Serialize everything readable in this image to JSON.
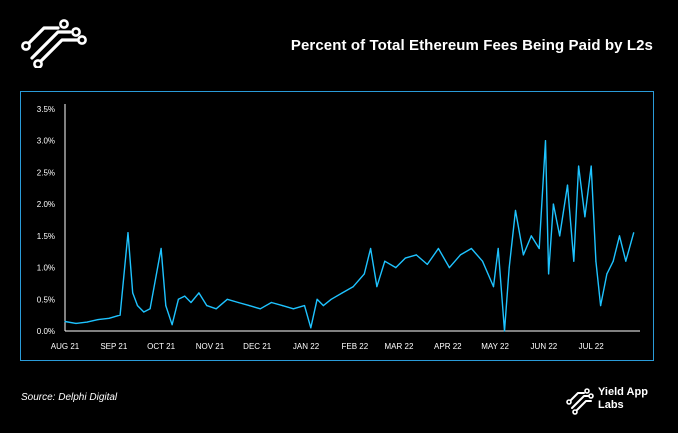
{
  "header": {
    "title": "Percent of Total Ethereum Fees Being Paid by L2s"
  },
  "footer": {
    "source": "Source: Delphi Digital",
    "brand_line1": "Yield App",
    "brand_line2": "Labs"
  },
  "colors": {
    "background": "#000000",
    "frame": "#2a9bd8",
    "series": "#1ec3ff",
    "text": "#ffffff"
  },
  "icons": {
    "top_logo": "circuit-trace-logo-icon",
    "brand_logo": "circuit-trace-logo-icon"
  },
  "chart_data": {
    "type": "line",
    "title": "Percent of Total Ethereum Fees Being Paid by L2s",
    "xlabel": "",
    "ylabel": "",
    "ylim": [
      0,
      3.5
    ],
    "grid": false,
    "legend": "none",
    "y_ticks": [
      "0.0%",
      "0.5%",
      "1.0%",
      "1.5%",
      "2.0%",
      "2.5%",
      "3.0%",
      "3.5%"
    ],
    "x_ticks": [
      "AUG 21",
      "SEP 21",
      "OCT 21",
      "NOV 21",
      "DEC 21",
      "JAN 22",
      "FEB 22",
      "MAR 22",
      "APR 22",
      "MAY 22",
      "JUN 22",
      "JUL 22"
    ],
    "series": [
      {
        "x": [
          "2021-08-01",
          "2021-08-08",
          "2021-08-15",
          "2021-08-22",
          "2021-08-29",
          "2021-09-05",
          "2021-09-10",
          "2021-09-13",
          "2021-09-16",
          "2021-09-20",
          "2021-09-24",
          "2021-10-01",
          "2021-10-04",
          "2021-10-08",
          "2021-10-12",
          "2021-10-16",
          "2021-10-20",
          "2021-10-25",
          "2021-10-30",
          "2021-11-05",
          "2021-11-12",
          "2021-11-19",
          "2021-11-26",
          "2021-12-03",
          "2021-12-10",
          "2021-12-17",
          "2021-12-24",
          "2021-12-31",
          "2022-01-04",
          "2022-01-08",
          "2022-01-12",
          "2022-01-17",
          "2022-01-24",
          "2022-01-31",
          "2022-02-07",
          "2022-02-11",
          "2022-02-15",
          "2022-02-20",
          "2022-02-27",
          "2022-03-05",
          "2022-03-12",
          "2022-03-19",
          "2022-03-26",
          "2022-04-02",
          "2022-04-09",
          "2022-04-16",
          "2022-04-23",
          "2022-04-30",
          "2022-05-03",
          "2022-05-07",
          "2022-05-10",
          "2022-05-14",
          "2022-05-19",
          "2022-05-24",
          "2022-05-29",
          "2022-06-02",
          "2022-06-04",
          "2022-06-07",
          "2022-06-11",
          "2022-06-16",
          "2022-06-20",
          "2022-06-23",
          "2022-06-27",
          "2022-07-01",
          "2022-07-04",
          "2022-07-07",
          "2022-07-11",
          "2022-07-15",
          "2022-07-19",
          "2022-07-23",
          "2022-07-28"
        ],
        "values": [
          0.15,
          0.12,
          0.14,
          0.18,
          0.2,
          0.25,
          1.55,
          0.6,
          0.4,
          0.3,
          0.35,
          1.3,
          0.4,
          0.1,
          0.5,
          0.55,
          0.45,
          0.6,
          0.4,
          0.35,
          0.5,
          0.45,
          0.4,
          0.35,
          0.45,
          0.4,
          0.35,
          0.4,
          0.05,
          0.5,
          0.4,
          0.5,
          0.6,
          0.7,
          0.9,
          1.3,
          0.7,
          1.1,
          1.0,
          1.15,
          1.2,
          1.05,
          1.3,
          1.0,
          1.2,
          1.3,
          1.1,
          0.7,
          1.3,
          0.0,
          1.0,
          1.9,
          1.2,
          1.5,
          1.3,
          3.0,
          0.9,
          2.0,
          1.5,
          2.3,
          1.1,
          2.6,
          1.8,
          2.6,
          1.1,
          0.4,
          0.9,
          1.1,
          1.5,
          1.1,
          1.55
        ]
      }
    ]
  }
}
